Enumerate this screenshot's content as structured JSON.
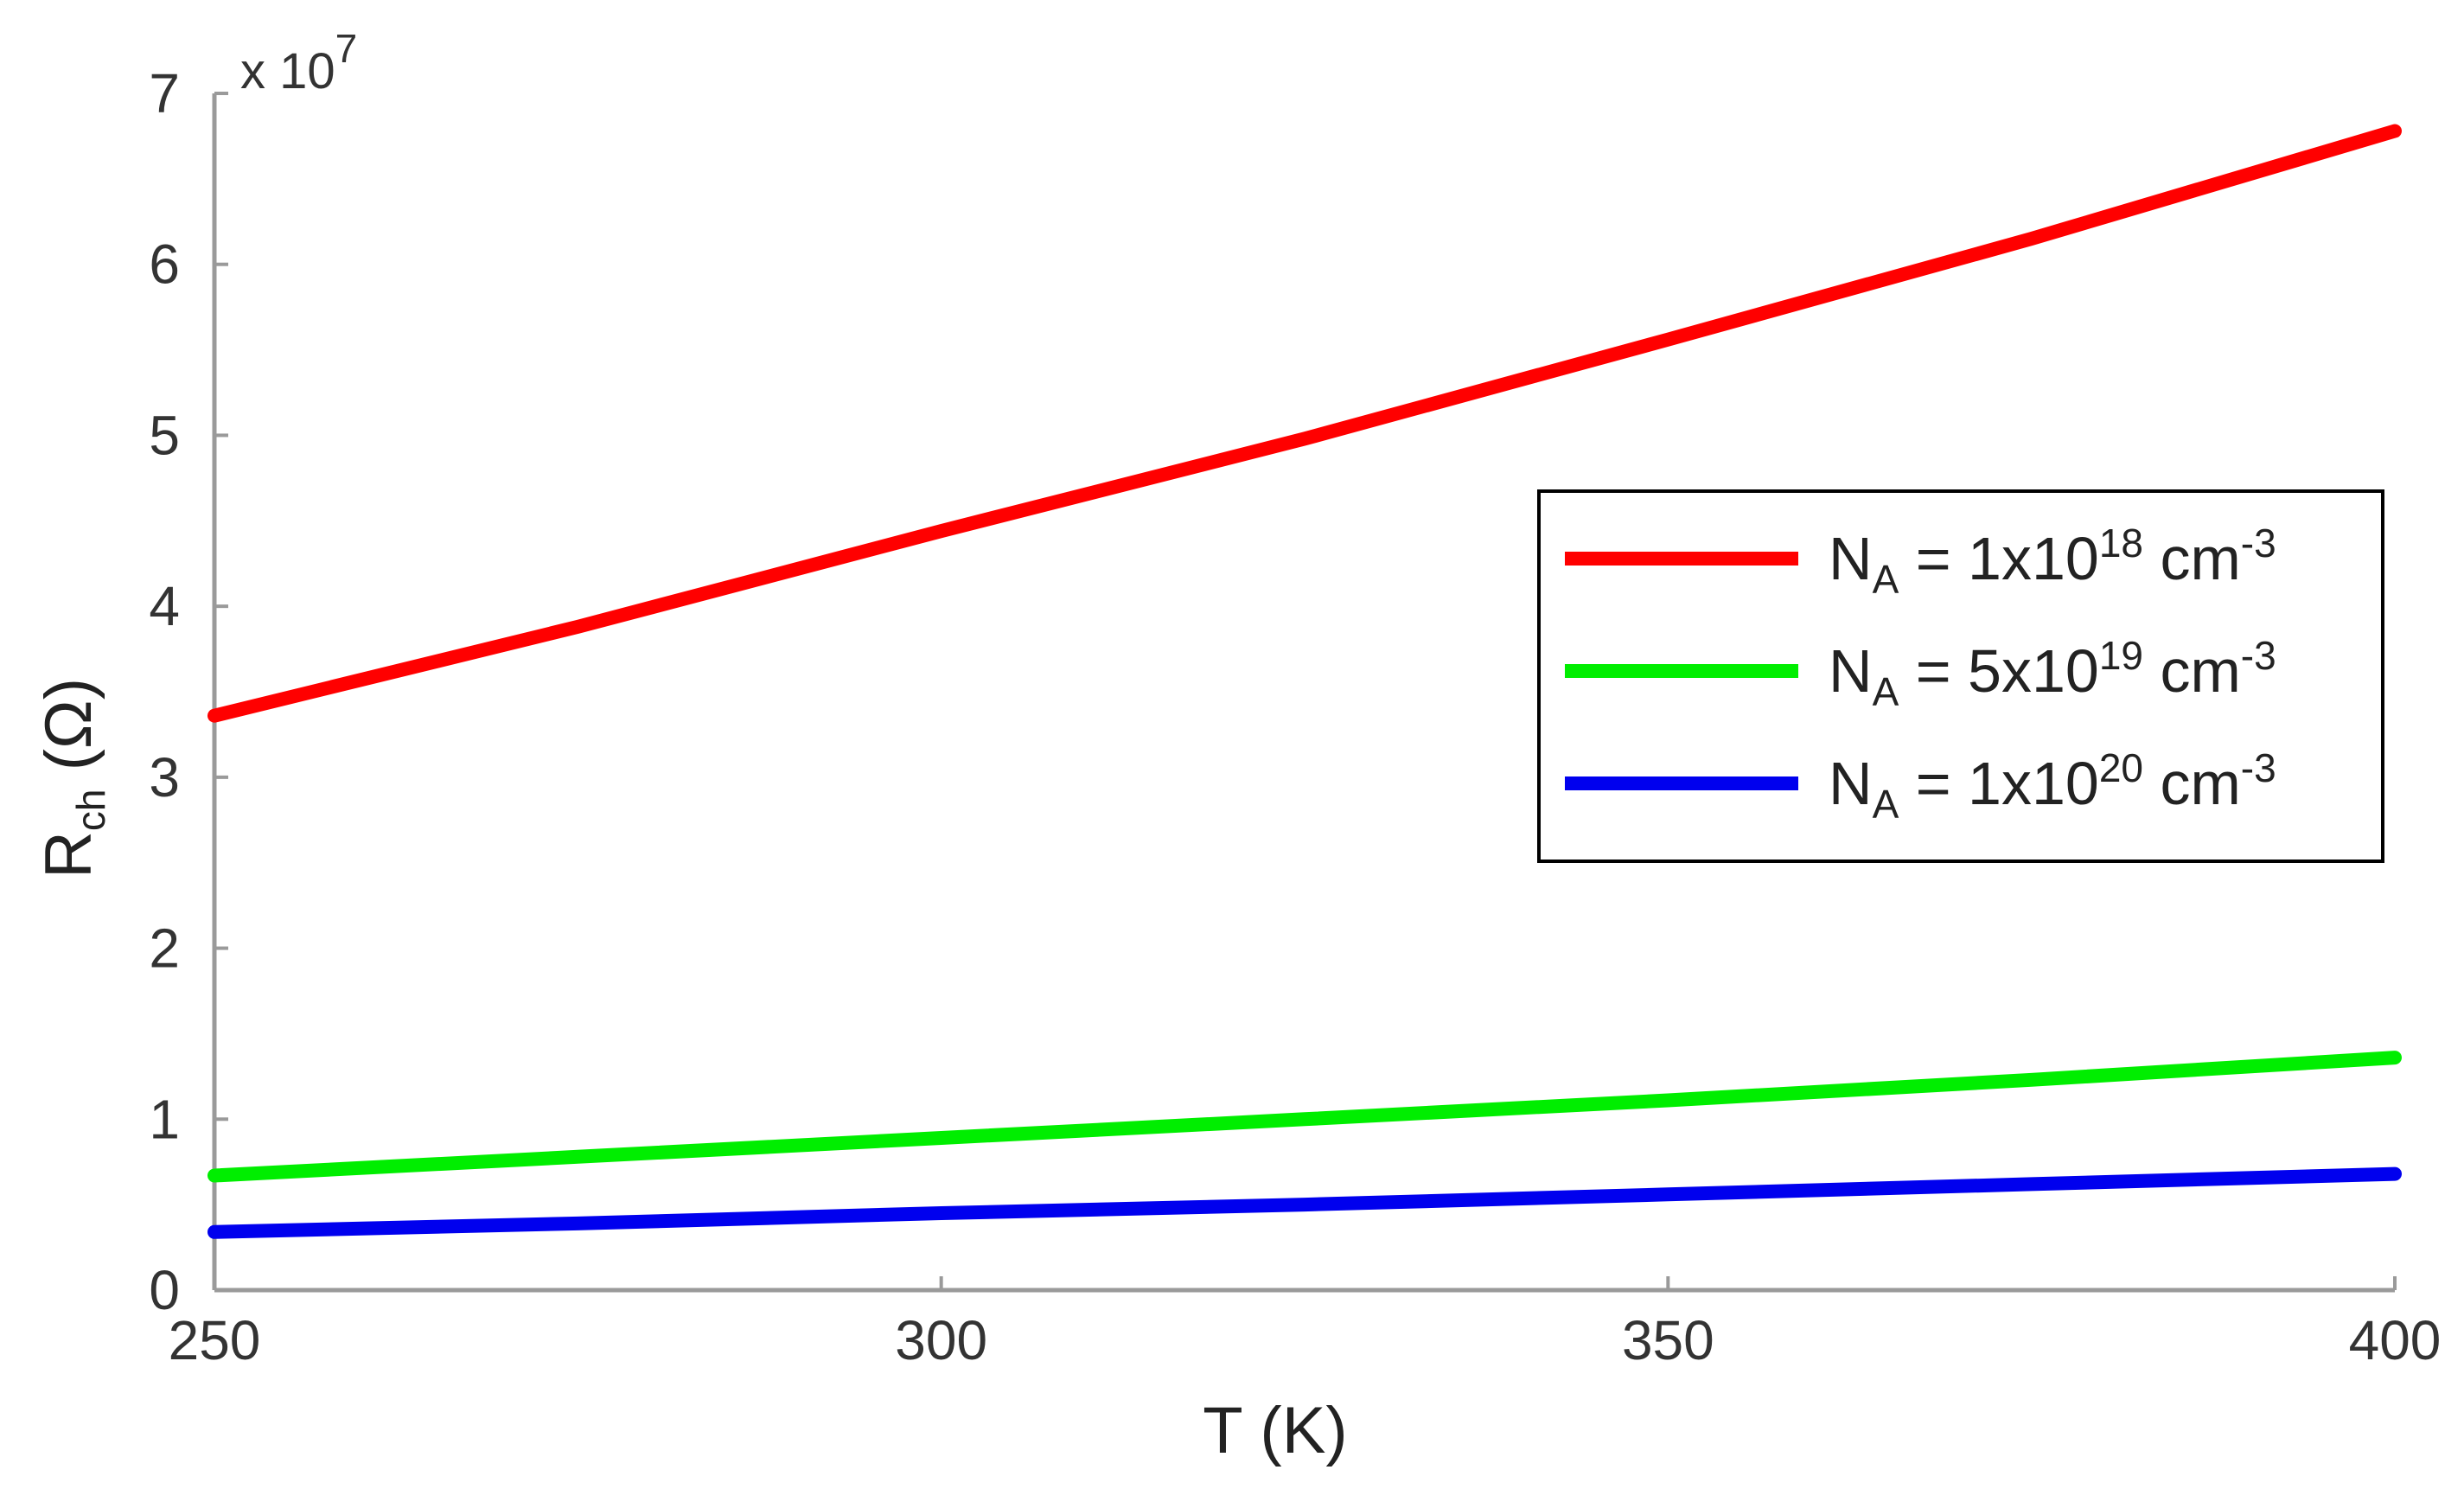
{
  "chart_data": {
    "type": "line",
    "title": "",
    "xlabel": "T (K)",
    "ylabel": {
      "main": "R",
      "sub": "ch",
      "unit": " (Ω)"
    },
    "y_multiplier": {
      "prefix": "x 10",
      "exponent": "7"
    },
    "xlim": [
      250,
      400
    ],
    "ylim": [
      0,
      7
    ],
    "x_ticks": [
      "250",
      "300",
      "350",
      "400"
    ],
    "y_ticks": [
      "0",
      "1",
      "2",
      "3",
      "4",
      "5",
      "6",
      "7"
    ],
    "grid": false,
    "legend_position": "right",
    "series": [
      {
        "name": {
          "sym": "N",
          "sub": "A",
          "mid": " = 1x10",
          "exp": "18",
          "unit": " cm",
          "unit_exp": "-3"
        },
        "color": "#ff0000",
        "x": [
          250,
          275,
          300,
          325,
          350,
          375,
          400
        ],
        "y": [
          3.36,
          3.88,
          4.44,
          4.98,
          5.56,
          6.15,
          6.78
        ]
      },
      {
        "name": {
          "sym": "N",
          "sub": "A",
          "mid": " = 5x10",
          "exp": "19",
          "unit": " cm",
          "unit_exp": "-3"
        },
        "color": "#00ee00",
        "x": [
          250,
          275,
          300,
          325,
          350,
          375,
          400
        ],
        "y": [
          0.67,
          0.78,
          0.89,
          1.0,
          1.11,
          1.23,
          1.36
        ]
      },
      {
        "name": {
          "sym": "N",
          "sub": "A",
          "mid": " = 1x10",
          "exp": "20",
          "unit": " cm",
          "unit_exp": "-3"
        },
        "color": "#0000ee",
        "x": [
          250,
          275,
          300,
          325,
          350,
          375,
          400
        ],
        "y": [
          0.34,
          0.39,
          0.45,
          0.5,
          0.56,
          0.62,
          0.68
        ]
      }
    ]
  }
}
